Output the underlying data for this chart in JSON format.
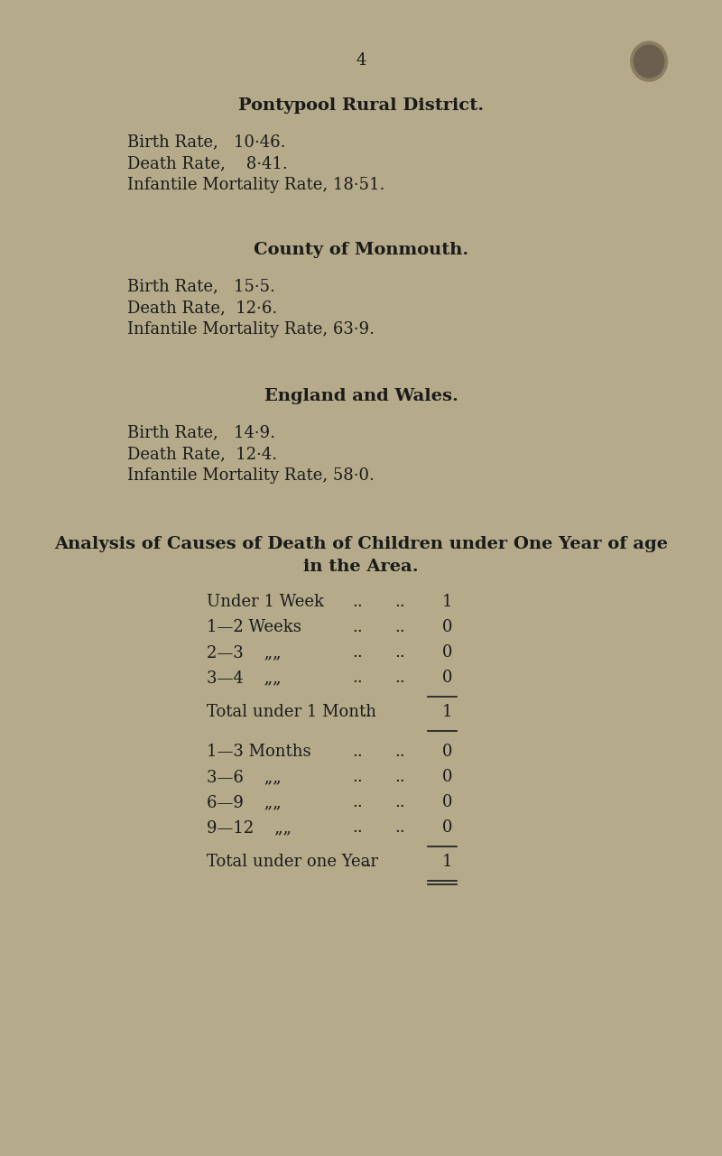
{
  "bg_color": "#b5aa8a",
  "text_color": "#1a1a1a",
  "page_number": "4",
  "section1_title": "Pontypool Rural District.",
  "section1_lines": [
    "Birth Rate,   10·46.",
    "Death Rate,    8·41.",
    "Infantile Mortality Rate, 18·51."
  ],
  "section2_title": "County of Monmouth.",
  "section2_lines": [
    "Birth Rate,   15·5.",
    "Death Rate,  12·6.",
    "Infantile Mortality Rate, 63·9."
  ],
  "section3_title": "England and Wales.",
  "section3_lines": [
    "Birth Rate,   14·9.",
    "Death Rate,  12·4.",
    "Infantile Mortality Rate, 58·0."
  ],
  "analysis_title1": "Analysis of Causes of Death of Children under One Year of age",
  "analysis_title2": "in the Area.",
  "table_rows": [
    [
      "Under 1 Week",
      "..",
      "..",
      "1"
    ],
    [
      "1—2 Weeks",
      "..",
      "..",
      "0"
    ],
    [
      "2—3    „„",
      "..",
      "..",
      "0"
    ],
    [
      "3—4    „„",
      "..",
      "..",
      "0"
    ]
  ],
  "total1_label": "Total under 1 Month",
  "total1_dots": "..",
  "total1_value": "1",
  "table_rows2": [
    [
      "1—3 Months",
      "..",
      "..",
      "0"
    ],
    [
      "3—6    „„",
      "..",
      "..",
      "0"
    ],
    [
      "6—9    „„",
      "..",
      "..",
      "0"
    ],
    [
      "9—12    „„",
      "..",
      "..",
      "0"
    ]
  ],
  "total2_label": "Total under one Year",
  "total2_dots": "..",
  "total2_value": "1"
}
